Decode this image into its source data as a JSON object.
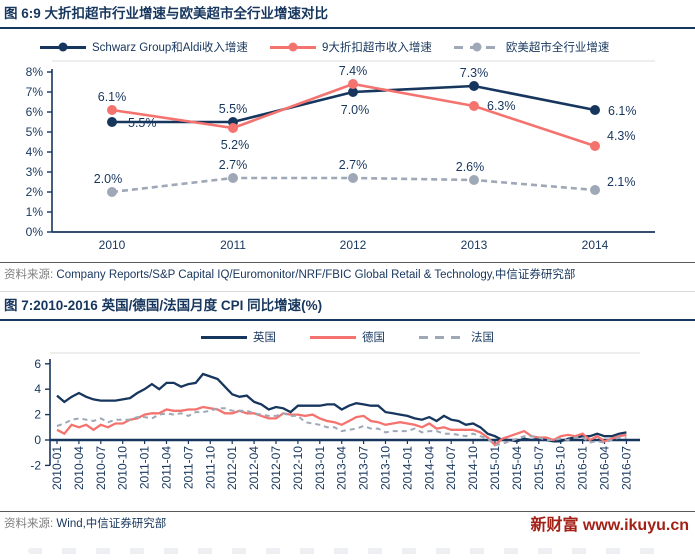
{
  "colors": {
    "navy": "#17365D",
    "salmon": "#F4736F",
    "gray_dashed": "#9EA8B6",
    "watermark_red": "#A32017",
    "source_label_gray": "#7F7F7F"
  },
  "figure6": {
    "title": "图 6:9 大折扣超市行业增速与欧美超市全行业增速对比",
    "source_label": "资料来源:",
    "source_text": "Company Reports/S&P Capital IQ/Euromonitor/NRF/FBIC Global Retail & Technology,中信证券研究部"
  },
  "figure7": {
    "title": "图 7:2010-2016 英国/德国/法国月度 CPI 同比增速(%)",
    "source_label": "资料来源:",
    "source_text": "Wind,中信证券研究部"
  },
  "watermark": "新财富 www.ikuyu.cn",
  "chart_data": [
    {
      "type": "line",
      "title": "9 大折扣超市行业增速与欧美超市全行业增速对比",
      "categories": [
        "2010",
        "2011",
        "2012",
        "2013",
        "2014"
      ],
      "ylim": [
        0,
        8
      ],
      "yticks": [
        "0%",
        "1%",
        "2%",
        "3%",
        "4%",
        "5%",
        "6%",
        "7%",
        "8%"
      ],
      "grid": false,
      "legend_position": "top",
      "series": [
        {
          "name": "Schwarz Group和Aldi收入增速",
          "color": "#17365D",
          "dash": null,
          "values": [
            5.5,
            5.5,
            7.0,
            7.3,
            6.1
          ],
          "labels": [
            "5.5%",
            "5.5%",
            "7.0%",
            "7.3%",
            "6.1%"
          ],
          "label_offsets": [
            [
              16,
              5,
              "start"
            ],
            [
              0,
              -9,
              "middle"
            ],
            [
              2,
              22,
              "middle"
            ],
            [
              0,
              -9,
              "middle"
            ],
            [
              13,
              5,
              "start"
            ]
          ]
        },
        {
          "name": "9大折扣超市收入增速",
          "color": "#F4736F",
          "dash": null,
          "values": [
            6.1,
            5.2,
            7.4,
            6.3,
            4.3
          ],
          "labels": [
            "6.1%",
            "5.2%",
            "7.4%",
            "6.3%",
            "4.3%"
          ],
          "label_offsets": [
            [
              0,
              -9,
              "middle"
            ],
            [
              2,
              21,
              "middle"
            ],
            [
              0,
              -9,
              "middle"
            ],
            [
              13,
              4,
              "start"
            ],
            [
              12,
              -6,
              "start"
            ]
          ]
        },
        {
          "name": "欧美超市全行业增速",
          "color": "#9EA8B6",
          "dash": "6,4",
          "values": [
            2.0,
            2.7,
            2.7,
            2.6,
            2.1
          ],
          "labels": [
            "2.0%",
            "2.7%",
            "2.7%",
            "2.6%",
            "2.1%"
          ],
          "label_offsets": [
            [
              -4,
              -9,
              "middle"
            ],
            [
              0,
              -9,
              "middle"
            ],
            [
              0,
              -9,
              "middle"
            ],
            [
              -4,
              -9,
              "middle"
            ],
            [
              12,
              -4,
              "start"
            ]
          ]
        }
      ]
    },
    {
      "type": "line",
      "title": "2010-2016 英国/德国/法国月度 CPI 同比增速(%)",
      "frequency": "monthly",
      "x_start": "2010-01",
      "x_end": "2016-07",
      "x_tick_labels": [
        "2010-01",
        "2010-04",
        "2010-07",
        "2010-10",
        "2011-01",
        "2011-04",
        "2011-07",
        "2011-10",
        "2012-01",
        "2012-04",
        "2012-07",
        "2012-10",
        "2013-01",
        "2013-04",
        "2013-07",
        "2013-10",
        "2014-01",
        "2014-04",
        "2014-07",
        "2014-10",
        "2015-01",
        "2015-04",
        "2015-07",
        "2015-10",
        "2016-01",
        "2016-04",
        "2016-07"
      ],
      "ylim": [
        -2,
        6
      ],
      "yticks": [
        6,
        4,
        2,
        0,
        -2
      ],
      "grid": false,
      "legend_position": "top",
      "series": [
        {
          "name": "英国",
          "color": "#17365D",
          "dash": null,
          "values": [
            3.5,
            3.0,
            3.4,
            3.7,
            3.4,
            3.2,
            3.1,
            3.1,
            3.1,
            3.2,
            3.3,
            3.7,
            4.0,
            4.4,
            4.0,
            4.5,
            4.5,
            4.2,
            4.4,
            4.5,
            5.2,
            5.0,
            4.8,
            4.2,
            3.6,
            3.4,
            3.5,
            3.0,
            2.8,
            2.4,
            2.6,
            2.5,
            2.2,
            2.7,
            2.7,
            2.7,
            2.7,
            2.8,
            2.8,
            2.4,
            2.7,
            2.9,
            2.8,
            2.7,
            2.7,
            2.2,
            2.1,
            2.0,
            1.9,
            1.7,
            1.6,
            1.8,
            1.5,
            1.9,
            1.6,
            1.5,
            1.2,
            1.3,
            1.0,
            0.5,
            0.3,
            0.0,
            0.0,
            -0.1,
            0.1,
            0.0,
            0.1,
            0.0,
            -0.1,
            -0.1,
            0.1,
            0.2,
            0.3,
            0.3,
            0.5,
            0.3,
            0.3,
            0.5,
            0.6
          ]
        },
        {
          "name": "德国",
          "color": "#F4736F",
          "dash": null,
          "values": [
            0.8,
            0.5,
            1.2,
            1.0,
            1.2,
            0.8,
            1.2,
            1.0,
            1.3,
            1.3,
            1.6,
            1.7,
            2.0,
            2.1,
            2.1,
            2.4,
            2.3,
            2.3,
            2.4,
            2.4,
            2.6,
            2.5,
            2.4,
            2.1,
            2.1,
            2.3,
            2.1,
            2.1,
            1.9,
            1.7,
            1.7,
            2.1,
            2.0,
            2.0,
            1.9,
            2.0,
            1.7,
            1.5,
            1.4,
            1.2,
            1.5,
            1.8,
            1.9,
            1.5,
            1.4,
            1.2,
            1.3,
            1.4,
            1.3,
            1.2,
            1.0,
            1.3,
            0.9,
            1.0,
            0.8,
            0.8,
            0.8,
            0.8,
            0.6,
            0.2,
            -0.4,
            0.1,
            0.3,
            0.5,
            0.7,
            0.3,
            0.2,
            0.2,
            0.0,
            0.3,
            0.4,
            0.3,
            0.5,
            0.0,
            0.3,
            -0.1,
            0.1,
            0.3,
            0.4
          ]
        },
        {
          "name": "法国",
          "color": "#9EA8B6",
          "dash": "5,4",
          "values": [
            1.1,
            1.3,
            1.6,
            1.7,
            1.6,
            1.5,
            1.7,
            1.4,
            1.6,
            1.6,
            1.6,
            1.8,
            1.8,
            1.7,
            2.0,
            2.1,
            2.0,
            2.1,
            1.9,
            2.2,
            2.2,
            2.3,
            2.5,
            2.5,
            2.3,
            2.3,
            2.3,
            2.1,
            2.0,
            1.9,
            1.9,
            2.1,
            1.9,
            1.9,
            1.4,
            1.3,
            1.2,
            1.0,
            1.0,
            0.7,
            0.8,
            0.9,
            1.1,
            0.9,
            0.9,
            0.6,
            0.7,
            0.7,
            0.7,
            0.9,
            0.6,
            0.7,
            0.7,
            0.5,
            0.5,
            0.4,
            0.3,
            0.5,
            0.3,
            0.1,
            -0.4,
            -0.3,
            -0.1,
            0.1,
            0.3,
            0.3,
            0.2,
            0.0,
            0.0,
            0.1,
            0.0,
            0.2,
            0.2,
            -0.2,
            -0.1,
            -0.2,
            0.0,
            0.2,
            0.2
          ]
        }
      ]
    }
  ]
}
